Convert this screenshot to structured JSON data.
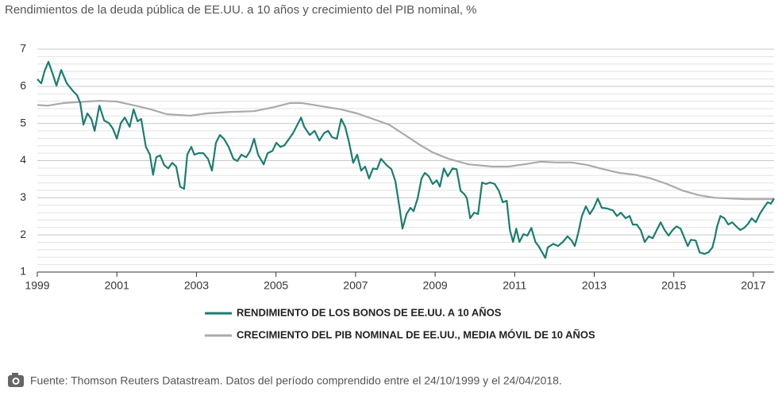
{
  "chart_data": {
    "type": "line",
    "title": "Rendimientos de la deuda pública de EE.UU. a 10 años y crecimiento del PIB nominal, %",
    "source": "Fuente: Thomson Reuters Datastream. Datos del período comprendido entre el 24/10/1999 y el 24/04/2018.",
    "xlim": [
      1999,
      2017.52
    ],
    "xticks": [
      1999,
      2001,
      2003,
      2005,
      2007,
      2009,
      2011,
      2013,
      2015,
      2017
    ],
    "ylim": [
      1,
      7
    ],
    "yticks": [
      1,
      2,
      3,
      4,
      5,
      6,
      7
    ],
    "minor_yticks": [
      1.2,
      1.4,
      1.6,
      1.8,
      2.2,
      2.4,
      2.6,
      2.8,
      3.2,
      3.4,
      3.6,
      3.8,
      4.2,
      4.4,
      4.6,
      4.8,
      5.2,
      5.4,
      5.6,
      5.8,
      6.2,
      6.4,
      6.6,
      6.8
    ],
    "grid": true,
    "series": [
      {
        "name": "RENDIMIENTO DE LOS BONOS DE EE.UU. A 10 AÑOS",
        "color": "#1b7d70",
        "x": [
          1999.0,
          1999.1,
          1999.18,
          1999.28,
          1999.38,
          1999.48,
          1999.6,
          1999.74,
          1999.9,
          2000.0,
          2000.08,
          2000.16,
          2000.26,
          2000.36,
          2000.44,
          2000.56,
          2000.68,
          2000.8,
          2000.9,
          2001.0,
          2001.1,
          2001.2,
          2001.32,
          2001.42,
          2001.52,
          2001.61,
          2001.73,
          2001.83,
          2001.91,
          2001.99,
          2002.09,
          2002.19,
          2002.29,
          2002.39,
          2002.49,
          2002.59,
          2002.69,
          2002.77,
          2002.87,
          2002.95,
          2003.05,
          2003.17,
          2003.29,
          2003.39,
          2003.49,
          2003.59,
          2003.69,
          2003.81,
          2003.93,
          2004.03,
          2004.13,
          2004.25,
          2004.35,
          2004.45,
          2004.55,
          2004.69,
          2004.79,
          2004.91,
          2005.01,
          2005.11,
          2005.21,
          2005.33,
          2005.43,
          2005.53,
          2005.63,
          2005.71,
          2005.85,
          2005.97,
          2006.09,
          2006.21,
          2006.31,
          2006.41,
          2006.53,
          2006.64,
          2006.74,
          2006.84,
          2006.94,
          2007.04,
          2007.14,
          2007.24,
          2007.34,
          2007.44,
          2007.54,
          2007.64,
          2007.78,
          2007.9,
          2008.0,
          2008.1,
          2008.18,
          2008.28,
          2008.38,
          2008.46,
          2008.56,
          2008.66,
          2008.74,
          2008.84,
          2008.94,
          2009.04,
          2009.12,
          2009.22,
          2009.32,
          2009.44,
          2009.54,
          2009.64,
          2009.74,
          2009.8,
          2009.88,
          2009.98,
          2010.08,
          2010.18,
          2010.28,
          2010.38,
          2010.5,
          2010.6,
          2010.7,
          2010.8,
          2010.88,
          2010.96,
          2011.04,
          2011.12,
          2011.22,
          2011.32,
          2011.42,
          2011.52,
          2011.6,
          2011.69,
          2011.77,
          2011.83,
          2011.97,
          2012.09,
          2012.21,
          2012.33,
          2012.43,
          2012.51,
          2012.59,
          2012.69,
          2012.79,
          2012.89,
          2012.99,
          2013.09,
          2013.19,
          2013.33,
          2013.47,
          2013.57,
          2013.67,
          2013.79,
          2013.89,
          2013.97,
          2014.07,
          2014.17,
          2014.27,
          2014.37,
          2014.47,
          2014.57,
          2014.67,
          2014.77,
          2014.87,
          2014.97,
          2015.07,
          2015.17,
          2015.27,
          2015.35,
          2015.43,
          2015.55,
          2015.65,
          2015.77,
          2015.87,
          2015.97,
          2016.03,
          2016.09,
          2016.17,
          2016.27,
          2016.37,
          2016.47,
          2016.57,
          2016.67,
          2016.77,
          2016.87,
          2016.96,
          2017.06,
          2017.16,
          2017.26,
          2017.36,
          2017.44,
          2017.52
        ],
        "values": [
          6.19,
          6.08,
          6.4,
          6.66,
          6.36,
          6.02,
          6.44,
          6.08,
          5.87,
          5.76,
          5.55,
          4.97,
          5.27,
          5.12,
          4.8,
          5.48,
          5.08,
          5.01,
          4.86,
          4.59,
          5.01,
          5.16,
          4.91,
          5.38,
          5.06,
          5.12,
          4.37,
          4.16,
          3.62,
          4.09,
          4.14,
          3.88,
          3.79,
          3.94,
          3.84,
          3.3,
          3.24,
          4.16,
          4.37,
          4.16,
          4.2,
          4.2,
          4.05,
          3.73,
          4.48,
          4.69,
          4.59,
          4.37,
          4.05,
          3.99,
          4.16,
          4.09,
          4.26,
          4.59,
          4.16,
          3.9,
          4.2,
          4.26,
          4.48,
          4.37,
          4.41,
          4.59,
          4.74,
          4.95,
          5.16,
          4.91,
          4.69,
          4.8,
          4.54,
          4.74,
          4.8,
          4.63,
          4.59,
          5.12,
          4.91,
          4.48,
          3.94,
          4.16,
          3.73,
          3.84,
          3.52,
          3.79,
          3.77,
          4.05,
          3.88,
          3.77,
          3.45,
          2.77,
          2.17,
          2.56,
          2.73,
          2.64,
          2.98,
          3.52,
          3.67,
          3.58,
          3.37,
          3.47,
          3.3,
          3.79,
          3.58,
          3.79,
          3.77,
          3.19,
          3.09,
          2.98,
          2.45,
          2.6,
          2.56,
          3.41,
          3.37,
          3.41,
          3.37,
          3.19,
          2.88,
          2.92,
          2.13,
          1.81,
          2.17,
          1.81,
          2.02,
          1.98,
          2.19,
          1.81,
          1.7,
          1.53,
          1.38,
          1.66,
          1.76,
          1.7,
          1.81,
          1.96,
          1.85,
          1.7,
          2.02,
          2.51,
          2.77,
          2.56,
          2.73,
          2.98,
          2.73,
          2.71,
          2.66,
          2.51,
          2.6,
          2.45,
          2.51,
          2.28,
          2.28,
          2.13,
          1.81,
          1.96,
          1.91,
          2.13,
          2.34,
          2.13,
          1.98,
          2.13,
          2.23,
          2.17,
          1.91,
          1.7,
          1.87,
          1.85,
          1.53,
          1.49,
          1.53,
          1.66,
          1.91,
          2.23,
          2.51,
          2.45,
          2.28,
          2.34,
          2.23,
          2.13,
          2.19,
          2.3,
          2.45,
          2.34,
          2.56,
          2.73,
          2.88,
          2.84,
          2.98
        ]
      },
      {
        "name": "CRECIMIENTO DEL PIB NOMINAL DE EE.UU., MEDIA MÓVIL DE 10 AÑOS",
        "color": "#aaaaaa",
        "x": [
          1999.0,
          1999.26,
          1999.66,
          2000.26,
          2000.56,
          2001.0,
          2001.46,
          2001.86,
          2002.25,
          2002.85,
          2003.25,
          2003.85,
          2004.45,
          2004.95,
          2005.35,
          2005.65,
          2006.05,
          2006.64,
          2007.04,
          2007.44,
          2007.84,
          2008.24,
          2008.64,
          2008.94,
          2009.34,
          2009.84,
          2010.44,
          2010.84,
          2011.24,
          2011.64,
          2012.03,
          2012.43,
          2012.83,
          2013.23,
          2013.63,
          2014.03,
          2014.43,
          2014.83,
          2015.23,
          2015.63,
          2016.03,
          2016.43,
          2016.82,
          2017.22,
          2017.52
        ],
        "values": [
          5.5,
          5.48,
          5.55,
          5.59,
          5.61,
          5.59,
          5.48,
          5.38,
          5.25,
          5.21,
          5.27,
          5.31,
          5.33,
          5.44,
          5.55,
          5.55,
          5.48,
          5.38,
          5.27,
          5.12,
          4.97,
          4.69,
          4.41,
          4.22,
          4.05,
          3.9,
          3.84,
          3.84,
          3.9,
          3.97,
          3.95,
          3.95,
          3.88,
          3.77,
          3.67,
          3.62,
          3.52,
          3.37,
          3.19,
          3.07,
          3.0,
          2.98,
          2.96,
          2.96,
          2.96
        ]
      }
    ]
  }
}
